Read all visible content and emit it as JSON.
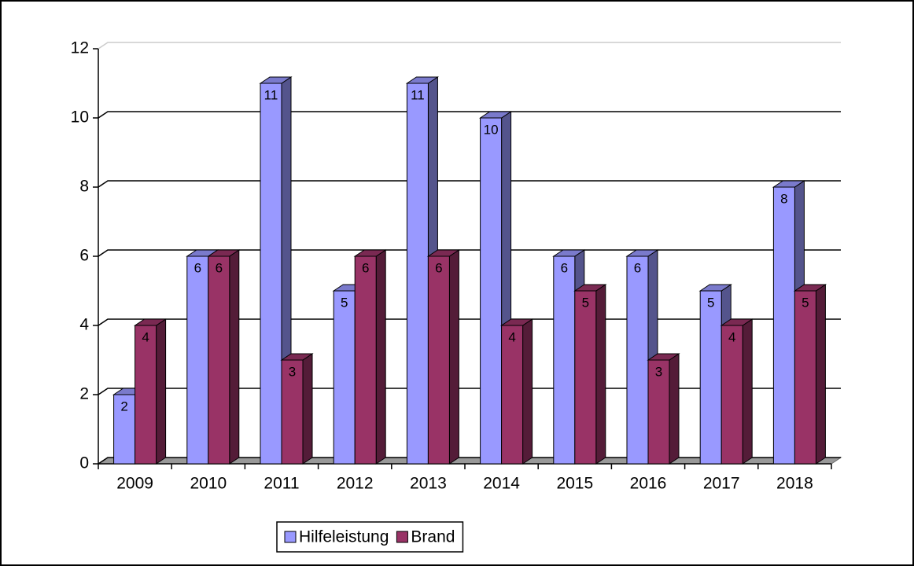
{
  "chart_data": {
    "type": "bar3d",
    "categories": [
      "2009",
      "2010",
      "2011",
      "2012",
      "2013",
      "2014",
      "2015",
      "2016",
      "2017",
      "2018"
    ],
    "series": [
      {
        "name": "Hilfeleistung",
        "color": "#9999ff",
        "values": [
          2,
          6,
          11,
          5,
          11,
          10,
          6,
          6,
          5,
          8
        ]
      },
      {
        "name": "Brand",
        "color": "#993366",
        "values": [
          4,
          6,
          3,
          6,
          6,
          4,
          5,
          3,
          4,
          5
        ]
      }
    ],
    "ylim": [
      0,
      12
    ],
    "yticks": [
      0,
      2,
      4,
      6,
      8,
      10,
      12
    ],
    "grid": true,
    "legend": "bottom"
  }
}
